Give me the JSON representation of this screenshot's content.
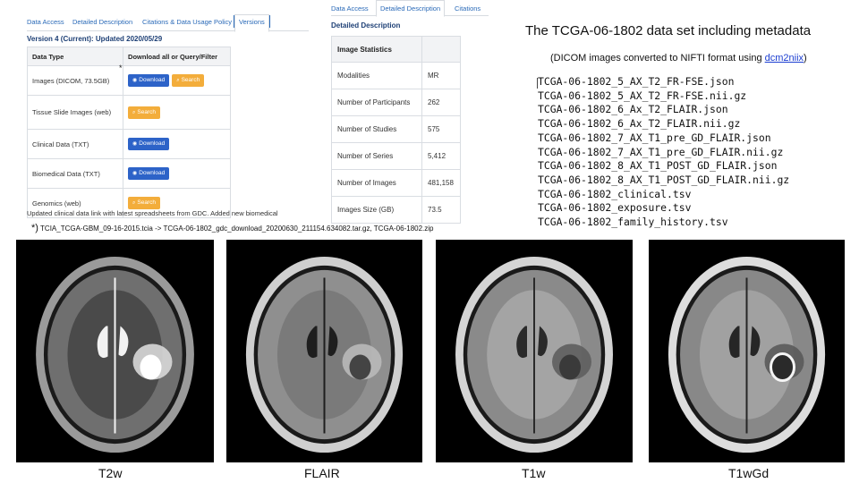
{
  "left_panel": {
    "tabs": [
      "Data Access",
      "Detailed Description",
      "Citations & Data Usage Policy",
      "Versions"
    ],
    "active_tab": "Versions",
    "version_title": "Version 4 (Current): Updated 2020/05/29",
    "table_headers": [
      "Data Type",
      "Download all or Query/Filter"
    ],
    "rows": [
      {
        "type": "Images (DICOM, 73.5GB)",
        "buttons": [
          {
            "label": "Download",
            "style": "blue",
            "icon": "download-icon"
          },
          {
            "label": "Search",
            "style": "orange",
            "icon": "search-icon"
          }
        ]
      },
      {
        "type": "Tissue Slide Images (web)",
        "buttons": [
          {
            "label": "Search",
            "style": "orange",
            "icon": "search-icon"
          }
        ]
      },
      {
        "type": "Clinical Data (TXT)",
        "buttons": [
          {
            "label": "Download",
            "style": "blue",
            "icon": "download-icon"
          }
        ]
      },
      {
        "type": "Biomedical Data (TXT)",
        "buttons": [
          {
            "label": "Download",
            "style": "blue",
            "icon": "download-icon"
          }
        ]
      },
      {
        "type": "Genomics (web)",
        "buttons": [
          {
            "label": "Search",
            "style": "orange",
            "icon": "search-icon"
          }
        ]
      }
    ],
    "asterisk": "*",
    "updated_note": "Updated clinical data link with latest spreadsheets from GDC. Added new biomedical",
    "source_note_star": "*)",
    "source_note": "TCIA_TCGA-GBM_09-16-2015.tcia  -> TCGA-06-1802_gdc_download_20200630_211154.634082.tar.gz, TCGA-06-1802.zip"
  },
  "middle_panel": {
    "tabs": [
      "Data Access",
      "Detailed Description",
      "Citations"
    ],
    "active_tab": "Detailed Description",
    "title": "Detailed Description",
    "table_header": "Image Statistics",
    "stats": [
      {
        "label": "Modalities",
        "value": "MR"
      },
      {
        "label": "Number of Participants",
        "value": "262"
      },
      {
        "label": "Number of Studies",
        "value": "575"
      },
      {
        "label": "Number of Series",
        "value": "5,412"
      },
      {
        "label": "Number of Images",
        "value": "481,158"
      },
      {
        "label": "Images Size (GB)",
        "value": "73.5"
      }
    ]
  },
  "right_panel": {
    "title": "The TCGA-06-1802 data set including metadata",
    "note_prefix": "(DICOM images converted to NIFTI format using ",
    "note_link": "dcm2niix",
    "note_suffix": ")",
    "files": [
      "TCGA-06-1802_5_AX_T2_FR-FSE.json",
      "TCGA-06-1802_5_AX_T2_FR-FSE.nii.gz",
      "TCGA-06-1802_6_Ax_T2_FLAIR.json",
      "TCGA-06-1802_6_Ax_T2_FLAIR.nii.gz",
      "TCGA-06-1802_7_AX_T1_pre_GD_FLAIR.json",
      "TCGA-06-1802_7_AX_T1_pre_GD_FLAIR.nii.gz",
      "TCGA-06-1802_8_AX_T1_POST_GD_FLAIR.json",
      "TCGA-06-1802_8_AX_T1_POST_GD_FLAIR.nii.gz",
      "TCGA-06-1802_clinical.tsv",
      "TCGA-06-1802_exposure.tsv",
      "TCGA-06-1802_family_history.tsv"
    ]
  },
  "mri_images": [
    {
      "label": "T2w",
      "kind": "t2"
    },
    {
      "label": "FLAIR",
      "kind": "flair"
    },
    {
      "label": "T1w",
      "kind": "t1"
    },
    {
      "label": "T1wGd",
      "kind": "t1gd"
    }
  ],
  "colors": {
    "link": "#2a6ab8",
    "heading": "#1d3f75",
    "button_blue": "#2d63c8",
    "button_orange": "#f3ad3b",
    "dcm2niix_link": "#1a3dd1"
  }
}
